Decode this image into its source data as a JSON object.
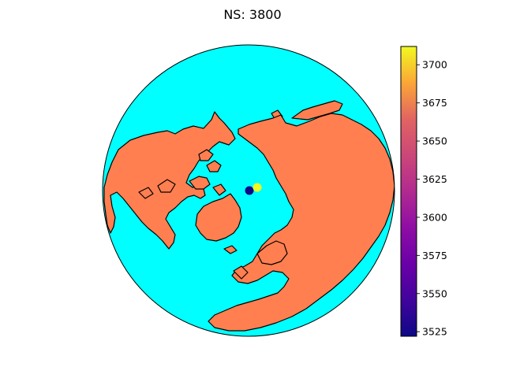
{
  "title": "NS: 3800",
  "colors": {
    "ocean": "#00ffff",
    "land": "#ff7f50",
    "outline": "#000000"
  },
  "colormap": "plasma",
  "chart_data": {
    "type": "scatter",
    "projection": "north-polar orthographic",
    "title": "NS: 3800",
    "points": [
      {
        "label": "point-1",
        "value": 3522
      },
      {
        "label": "point-2",
        "value": 3712
      }
    ],
    "colorbar": {
      "min": 3522,
      "max": 3712,
      "ticks": [
        "3525",
        "3550",
        "3575",
        "3600",
        "3625",
        "3650",
        "3675",
        "3700"
      ],
      "tick_values": [
        3525,
        3550,
        3575,
        3600,
        3625,
        3650,
        3675,
        3700
      ]
    }
  }
}
